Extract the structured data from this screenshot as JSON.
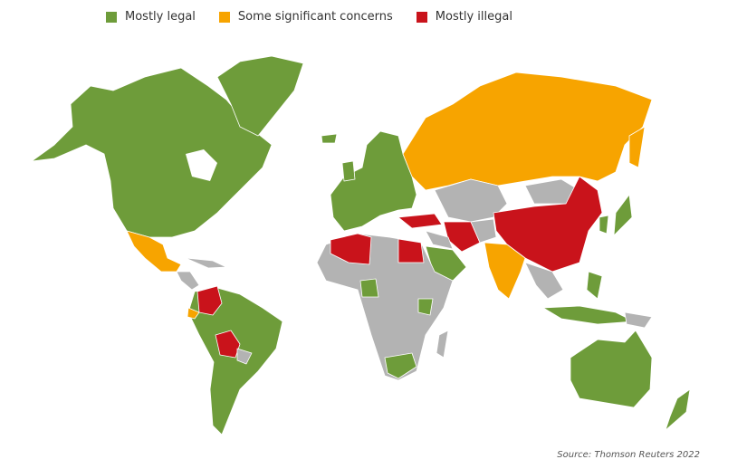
{
  "legend": [
    {
      "label": "Mostly legal",
      "color": "#6e9c3a"
    },
    {
      "label": "Some significant concerns",
      "color": "#f7a400"
    },
    {
      "label": "Mostly illegal",
      "color": "#c9131b"
    }
  ],
  "no_data_color": "#b3b3b3",
  "source": "Source: Thomson Reuters 2022"
}
